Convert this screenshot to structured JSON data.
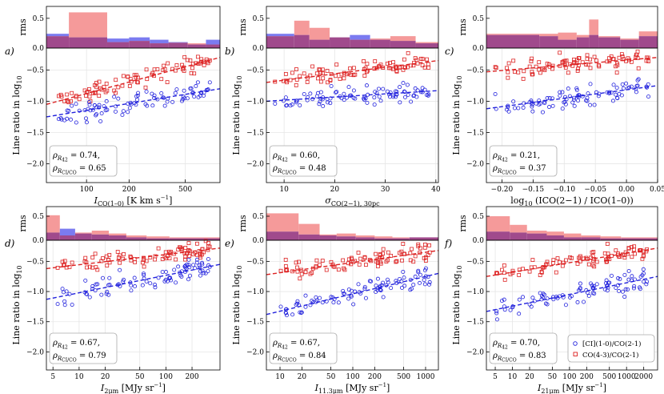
{
  "figure": {
    "colors": {
      "ci": "#2222dd",
      "co43": "#dd2222",
      "grid": "#e6e6e6",
      "rms_blue": "#7b7bf0",
      "rms_red": "#f59a9a",
      "rms_overlap": "#a04a8c"
    },
    "legend": {
      "ci_label": "[CI](1-0)/CO(2-1)",
      "co43_label": "CO(4-3)/CO(2-1)"
    }
  },
  "chart_data": [
    {
      "id": "a",
      "panel_label": "a)",
      "type": "scatter",
      "xscale": "log",
      "xlabel": "I_CO(1-0) [K km s^-1]",
      "xlabel_main": "I",
      "xlabel_sub": "CO(1–0)",
      "xlabel_tail": " [K km s",
      "xlabel_sup": "−1",
      "xlabel_end": "]",
      "ylabel": "Line ratio in log10",
      "ylabel_main": "Line ratio in log",
      "ylabel_sub": "10",
      "rms_ylabel": "rms",
      "xlim": [
        52,
        880
      ],
      "ylim": [
        -2.3,
        -0.15
      ],
      "rms_ylim": [
        0,
        0.7
      ],
      "xticks": [
        100,
        200,
        500
      ],
      "xtick_labels": [
        "100",
        "200",
        "500"
      ],
      "yticks": [
        -2.0,
        -1.5,
        -1.0,
        -0.5
      ],
      "ytick_labels": [
        "−2.0",
        "−1.5",
        "−1.0",
        "−0.5"
      ],
      "rms_yticks": [
        0.0,
        0.5
      ],
      "rms_ytick_labels": [
        "0.0",
        "0.5"
      ],
      "fits": {
        "ci": [
          -1.25,
          -0.8
        ],
        "co43": [
          -1.05,
          -0.3
        ]
      },
      "rms_bins": {
        "edges": [
          52,
          75,
          140,
          200,
          280,
          380,
          520,
          700,
          880
        ],
        "ci": [
          0.24,
          0.18,
          0.16,
          0.18,
          0.14,
          0.1,
          0.06,
          0.14
        ],
        "co43": [
          0.2,
          0.6,
          0.1,
          0.12,
          0.08,
          0.09,
          0.08,
          0.06
        ]
      },
      "stats": {
        "r42_label": "= 0.74,",
        "ci_label": "= 0.65"
      },
      "legend": false
    },
    {
      "id": "b",
      "panel_label": "b)",
      "type": "scatter",
      "xscale": "linear",
      "xlabel": "sigma_CO(2-1),30pc",
      "xlabel_main": "σ",
      "xlabel_sub": "CO(2−1), 30pc",
      "xlabel_tail": "",
      "xlabel_sup": "",
      "xlabel_end": "",
      "ylabel": "Line ratio in log10",
      "ylabel_main": "Line ratio in log",
      "ylabel_sub": "10",
      "rms_ylabel": "rms",
      "xlim": [
        6.5,
        40.5
      ],
      "ylim": [
        -2.3,
        -0.15
      ],
      "rms_ylim": [
        0,
        0.7
      ],
      "xticks": [
        10,
        20,
        30,
        40
      ],
      "xtick_labels": [
        "10",
        "20",
        "30",
        "40"
      ],
      "yticks": [
        -2.0,
        -1.5,
        -1.0,
        -0.5
      ],
      "ytick_labels": [
        "−2.0",
        "−1.5",
        "−1.0",
        "−0.5"
      ],
      "rms_yticks": [
        0.0,
        0.5
      ],
      "rms_ytick_labels": [
        "0.0",
        "0.5"
      ],
      "fits": {
        "ci": [
          -1.0,
          -0.83
        ],
        "co43": [
          -0.7,
          -0.35
        ]
      },
      "rms_bins": {
        "edges": [
          6.5,
          12,
          15,
          19,
          23,
          27,
          31,
          36,
          40.5
        ],
        "ci": [
          0.24,
          0.22,
          0.14,
          0.18,
          0.22,
          0.14,
          0.12,
          0.08
        ],
        "co43": [
          0.2,
          0.46,
          0.34,
          0.18,
          0.14,
          0.16,
          0.2,
          0.1
        ]
      },
      "stats": {
        "r42_label": "= 0.60,",
        "ci_label": "= 0.48"
      },
      "legend": false
    },
    {
      "id": "c",
      "panel_label": "c)",
      "type": "scatter",
      "xscale": "linear",
      "xlabel": "log10 (I_CO(2-1) / I_CO(1-0))",
      "xlabel_main": "log",
      "xlabel_sub": "10",
      "xlabel_tail": " (I",
      "xlabel_sup": "",
      "xlabel_end": "CO(2−1) / ICO(1–0))",
      "ylabel": "Line ratio in log10",
      "ylabel_main": "Line ratio in log",
      "ylabel_sub": "10",
      "rms_ylabel": "rms",
      "xlim": [
        -0.225,
        0.05
      ],
      "ylim": [
        -2.3,
        -0.15
      ],
      "rms_ylim": [
        0,
        0.7
      ],
      "xticks": [
        -0.2,
        -0.15,
        -0.1,
        -0.05,
        0.0,
        0.05
      ],
      "xtick_labels": [
        "−0.20",
        "−0.15",
        "−0.10",
        "−0.05",
        "0.00",
        "0.05"
      ],
      "yticks": [
        -2.0,
        -1.5,
        -1.0,
        -0.5
      ],
      "ytick_labels": [
        "−2.0",
        "−1.5",
        "−1.0",
        "−0.5"
      ],
      "rms_yticks": [
        0.0,
        0.5
      ],
      "rms_ytick_labels": [
        "0.0",
        "0.5"
      ],
      "fits": {
        "ci": [
          -1.12,
          -0.75
        ],
        "co43": [
          -0.53,
          -0.3
        ]
      },
      "rms_bins": {
        "edges": [
          -0.225,
          -0.14,
          -0.11,
          -0.08,
          -0.06,
          -0.045,
          -0.01,
          0.02,
          0.05
        ],
        "ci": [
          0.22,
          0.2,
          0.14,
          0.18,
          0.22,
          0.18,
          0.14,
          0.2
        ],
        "co43": [
          0.24,
          0.24,
          0.26,
          0.22,
          0.48,
          0.2,
          0.16,
          0.28
        ]
      },
      "stats": {
        "r42_label": "= 0.21,",
        "ci_label": "= 0.37"
      },
      "legend": false
    },
    {
      "id": "d",
      "panel_label": "d)",
      "type": "scatter",
      "xscale": "log",
      "xlabel": "I_2um [MJy sr^-1]",
      "xlabel_main": "I",
      "xlabel_sub": "2μm",
      "xlabel_tail": " [MJy sr",
      "xlabel_sup": "−1",
      "xlabel_end": "]",
      "ylabel": "Line ratio in log10",
      "ylabel_main": "Line ratio in log",
      "ylabel_sub": "10",
      "rms_ylabel": "rms",
      "xlim": [
        4.2,
        420
      ],
      "ylim": [
        -2.3,
        -0.15
      ],
      "rms_ylim": [
        0,
        0.7
      ],
      "xticks": [
        5,
        10,
        20,
        50,
        100,
        200
      ],
      "xtick_labels": [
        "5",
        "10",
        "20",
        "50",
        "100",
        "200"
      ],
      "yticks": [
        -2.0,
        -1.5,
        -1.0,
        -0.5
      ],
      "ytick_labels": [
        "−2.0",
        "−1.5",
        "−1.0",
        "−0.5"
      ],
      "rms_yticks": [
        0.0,
        0.5
      ],
      "rms_ytick_labels": [
        "0.0",
        "0.5"
      ],
      "fits": {
        "ci": [
          -1.13,
          -0.55
        ],
        "co43": [
          -0.62,
          -0.28
        ]
      },
      "rms_bins": {
        "edges": [
          4.2,
          6,
          9,
          14,
          22,
          35,
          60,
          110,
          420
        ],
        "ci": [
          0.16,
          0.24,
          0.14,
          0.12,
          0.1,
          0.06,
          0.04,
          0.04
        ],
        "co43": [
          0.52,
          0.1,
          0.16,
          0.2,
          0.14,
          0.1,
          0.08,
          0.06
        ]
      },
      "stats": {
        "r42_label": "= 0.67,",
        "ci_label": "= 0.79"
      },
      "legend": false
    },
    {
      "id": "e",
      "panel_label": "e)",
      "type": "scatter",
      "xscale": "log",
      "xlabel": "I_11.3um [MJy sr^-1]",
      "xlabel_main": "I",
      "xlabel_sub": "11.3μm",
      "xlabel_tail": " [MJy sr",
      "xlabel_sup": "−1",
      "xlabel_end": "]",
      "ylabel": "Line ratio in log10",
      "ylabel_main": "Line ratio in log",
      "ylabel_sub": "10",
      "rms_ylabel": "rms",
      "xlim": [
        6.5,
        1500
      ],
      "ylim": [
        -2.3,
        -0.15
      ],
      "rms_ylim": [
        0,
        0.7
      ],
      "xticks": [
        10,
        20,
        50,
        100,
        200,
        500,
        1000
      ],
      "xtick_labels": [
        "10",
        "20",
        "50",
        "100",
        "200",
        "500",
        "1000"
      ],
      "yticks": [
        -2.0,
        -1.5,
        -1.0,
        -0.5
      ],
      "ytick_labels": [
        "−2.0",
        "−1.5",
        "−1.0",
        "−0.5"
      ],
      "rms_yticks": [
        0.0,
        0.5
      ],
      "rms_ytick_labels": [
        "0.0",
        "0.5"
      ],
      "fits": {
        "ci": [
          -1.38,
          -0.7
        ],
        "co43": [
          -0.72,
          -0.32
        ]
      },
      "rms_bins": {
        "edges": [
          6.5,
          18,
          35,
          60,
          110,
          200,
          350,
          600,
          1500
        ],
        "ci": [
          0.18,
          0.12,
          0.1,
          0.08,
          0.06,
          0.04,
          0.04,
          0.06
        ],
        "co43": [
          0.56,
          0.34,
          0.12,
          0.14,
          0.1,
          0.08,
          0.06,
          0.06
        ]
      },
      "stats": {
        "r42_label": "= 0.67,",
        "ci_label": "= 0.84"
      },
      "legend": false
    },
    {
      "id": "f",
      "panel_label": "f)",
      "type": "scatter",
      "xscale": "log",
      "xlabel": "I_21um [MJy sr^-1]",
      "xlabel_main": "I",
      "xlabel_sub": "21μm",
      "xlabel_tail": " [MJy sr",
      "xlabel_sup": "−1",
      "xlabel_end": "]",
      "ylabel": "Line ratio in log10",
      "ylabel_main": "Line ratio in log",
      "ylabel_sub": "10",
      "rms_ylabel": "rms",
      "xlim": [
        3.5,
        3500
      ],
      "ylim": [
        -2.3,
        -0.15
      ],
      "rms_ylim": [
        0,
        0.7
      ],
      "xticks": [
        5,
        10,
        20,
        50,
        100,
        200,
        500,
        1000,
        2000
      ],
      "xtick_labels": [
        "5",
        "10",
        "20",
        "50",
        "100",
        "200",
        "500",
        "1000",
        "2000"
      ],
      "yticks": [
        -2.0,
        -1.5,
        -1.0,
        -0.5
      ],
      "ytick_labels": [
        "−2.0",
        "−1.5",
        "−1.0",
        "−0.5"
      ],
      "rms_yticks": [
        0.0,
        0.5
      ],
      "rms_ytick_labels": [
        "0.0",
        "0.5"
      ],
      "fits": {
        "ci": [
          -1.33,
          -0.75
        ],
        "co43": [
          -0.75,
          -0.28
        ]
      },
      "rms_bins": {
        "edges": [
          3.5,
          9,
          18,
          40,
          80,
          160,
          350,
          800,
          3500
        ],
        "ci": [
          0.18,
          0.16,
          0.14,
          0.1,
          0.06,
          0.06,
          0.04,
          0.04
        ],
        "co43": [
          0.5,
          0.32,
          0.2,
          0.18,
          0.14,
          0.1,
          0.08,
          0.06
        ]
      },
      "stats": {
        "r42_label": "= 0.70,",
        "ci_label": "= 0.83"
      },
      "legend": true
    }
  ]
}
